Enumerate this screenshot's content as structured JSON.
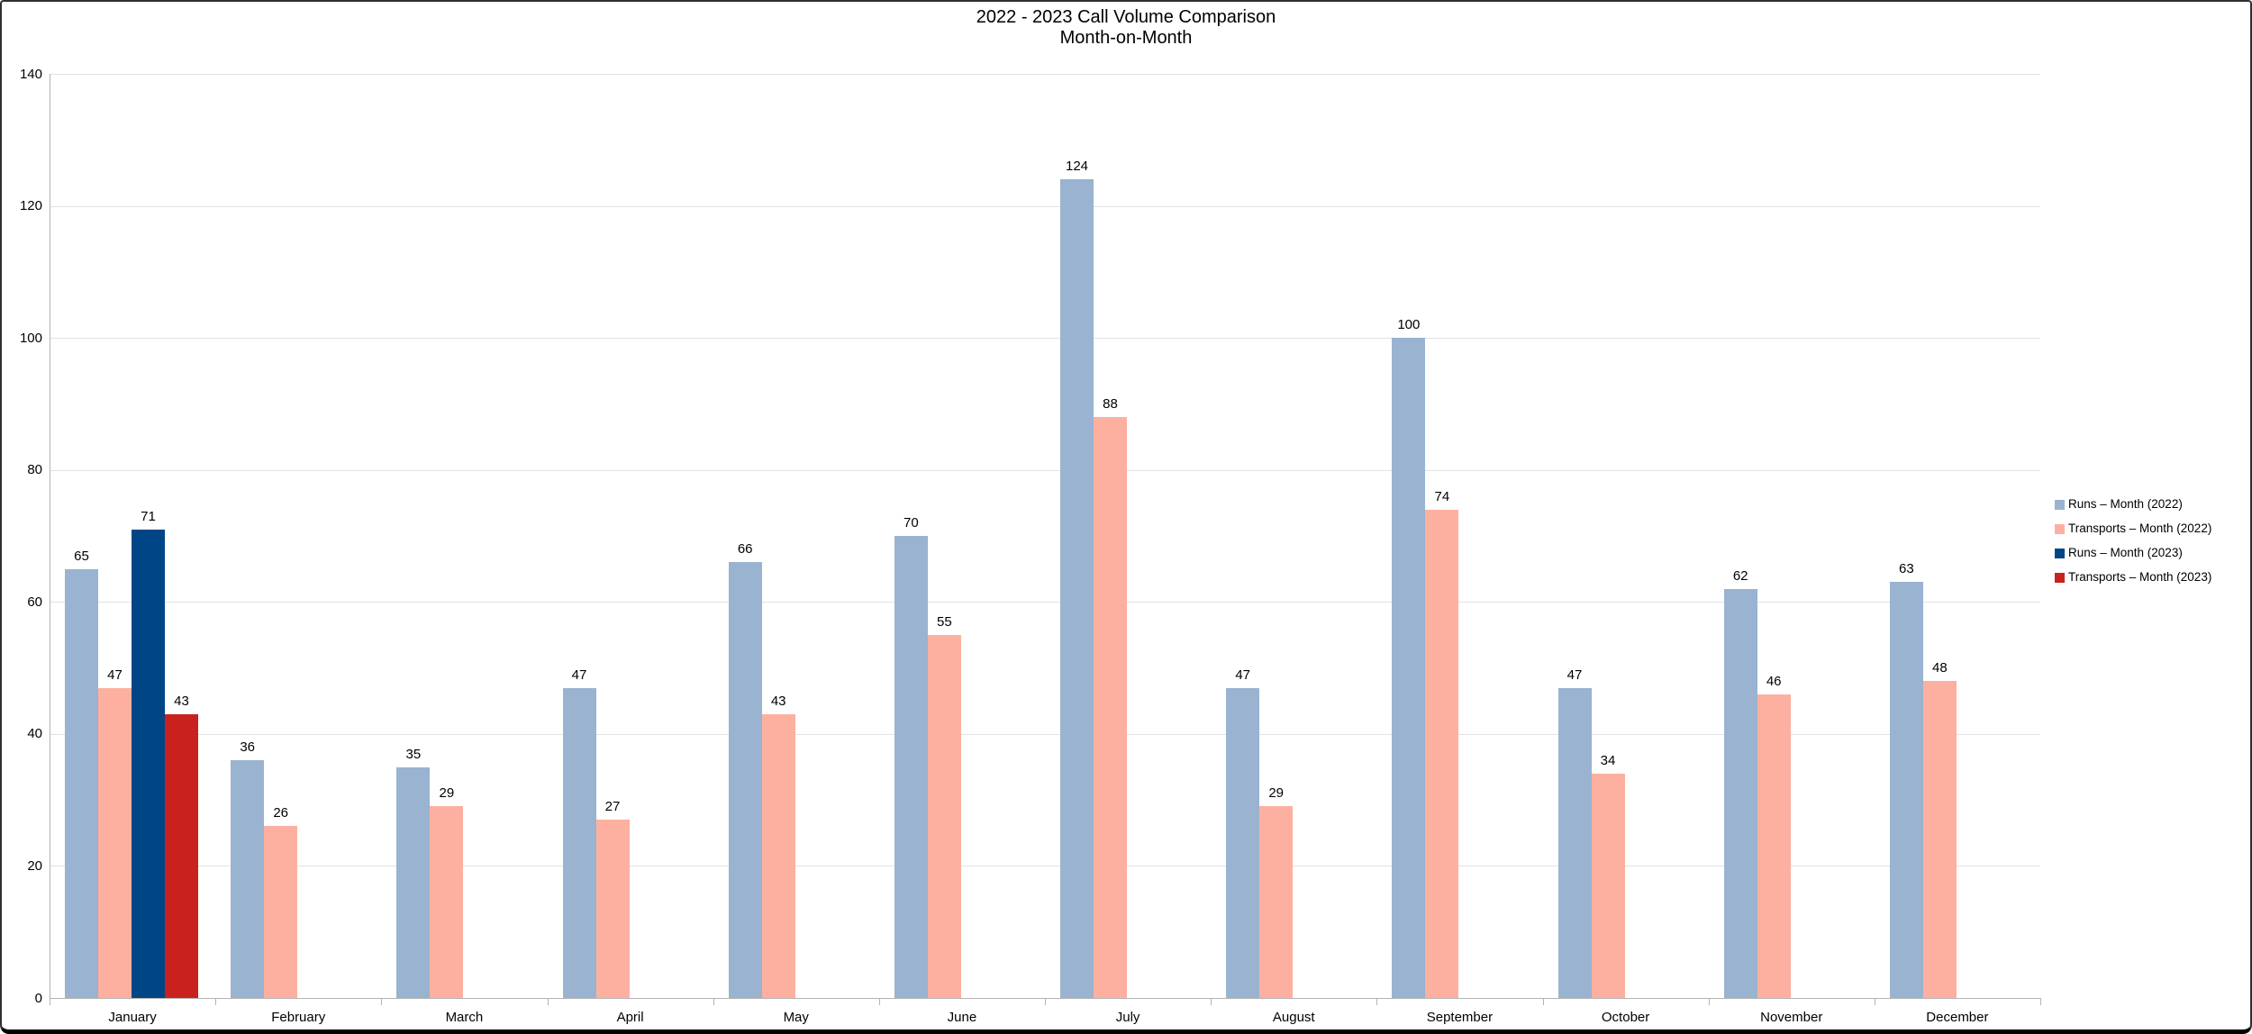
{
  "title": {
    "line1": "2022 - 2023 Call Volume Comparison",
    "line2": "Month-on-Month"
  },
  "chart_data": {
    "type": "bar",
    "categories": [
      "January",
      "February",
      "March",
      "April",
      "May",
      "June",
      "July",
      "August",
      "September",
      "October",
      "November",
      "December"
    ],
    "series": [
      {
        "name": "Runs – Month (2022)",
        "color": "#99B3D1",
        "values": [
          65,
          36,
          35,
          47,
          66,
          70,
          124,
          47,
          100,
          47,
          62,
          63
        ]
      },
      {
        "name": "Transports – Month (2022)",
        "color": "#FDB0A0",
        "values": [
          47,
          26,
          29,
          27,
          43,
          55,
          88,
          29,
          74,
          34,
          46,
          48
        ]
      },
      {
        "name": "Runs – Month (2023)",
        "color": "#004586",
        "values": [
          71,
          null,
          null,
          null,
          null,
          null,
          null,
          null,
          null,
          null,
          null,
          null
        ]
      },
      {
        "name": "Transports – Month (2023)",
        "color": "#C9211E",
        "values": [
          43,
          null,
          null,
          null,
          null,
          null,
          null,
          null,
          null,
          null,
          null,
          null
        ]
      }
    ],
    "title": "2022 - 2023 Call Volume Comparison",
    "subtitle": "Month-on-Month",
    "xlabel": "",
    "ylabel": "",
    "ylim": [
      0,
      140
    ],
    "yticks": [
      0,
      20,
      40,
      60,
      80,
      100,
      120,
      140
    ],
    "grid": true,
    "data_labels": true,
    "legend_position": "right",
    "colors": {
      "gridline": "#e2e2e2",
      "axis": "#b3b3b3",
      "background": "#ffffff",
      "text": "#000000"
    }
  }
}
